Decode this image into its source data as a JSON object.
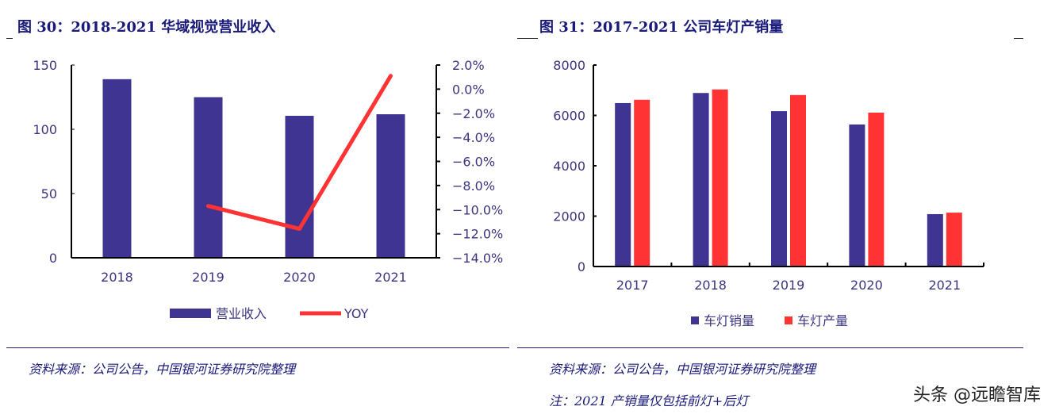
{
  "figures": {
    "left_title": "图 30：2018-2021 华域视觉营业收入",
    "right_title": "图 31：2017-2021 公司车灯产销量",
    "left_source": "资料来源：公司公告，中国银河证券研究院整理",
    "right_source": "资料来源：公司公告，中国银河证券研究院整理",
    "right_note": "注：2021 产销量仅包括前灯+后灯",
    "watermark": "头条 @远瞻智库"
  },
  "colors": {
    "blue": "#3f3491",
    "red": "#ff3333",
    "text": "#3a3580"
  },
  "chart_data": [
    {
      "type": "bar+line",
      "categories": [
        "2018",
        "2019",
        "2020",
        "2021"
      ],
      "series": [
        {
          "name": "营业收入",
          "type": "bar",
          "axis": "left",
          "values": [
            139,
            125,
            110.5,
            111.7
          ]
        },
        {
          "name": "YOY",
          "type": "line",
          "axis": "right",
          "values": [
            null,
            -9.7,
            -11.6,
            1.1
          ]
        }
      ],
      "ylim": [
        0,
        150
      ],
      "yticks": [
        "0",
        "50",
        "100",
        "150"
      ],
      "y2lim": [
        -14,
        2
      ],
      "y2ticks": [
        "2.0%",
        "0.0%",
        "-2.0%",
        "-4.0%",
        "-6.0%",
        "-8.0%",
        "-10.0%",
        "-12.0%",
        "-14.0%"
      ],
      "legend": "bottom",
      "grid": false
    },
    {
      "type": "bar",
      "categories": [
        "2017",
        "2018",
        "2019",
        "2020",
        "2021"
      ],
      "series": [
        {
          "name": "车灯销量",
          "values": [
            6490,
            6890,
            6170,
            5640,
            2080
          ]
        },
        {
          "name": "车灯产量",
          "values": [
            6620,
            7030,
            6810,
            6110,
            2140
          ]
        }
      ],
      "ylim": [
        0,
        8000
      ],
      "yticks": [
        "0",
        "2000",
        "4000",
        "6000",
        "8000"
      ],
      "legend": "bottom",
      "grid": false
    }
  ]
}
